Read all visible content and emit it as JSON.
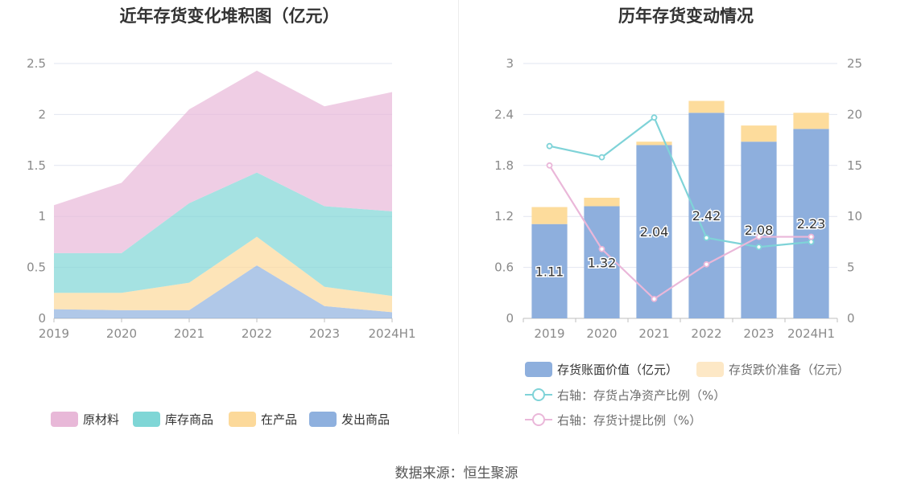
{
  "footer": "数据来源：恒生聚源",
  "colors": {
    "raw": "#e8b8d8",
    "stock": "#7fd6d6",
    "wip": "#fcd99a",
    "shipped": "#8eb0de",
    "bar_book": "#8eafdd",
    "bar_reserve": "#fddc9c",
    "line_ratio": "#7fd3d8",
    "line_reserve_rate": "#eab7d9",
    "grid": "#e2e6f0",
    "axis": "#bfbfbf"
  },
  "chart_data": [
    {
      "type": "area",
      "stacked": true,
      "title": "近年存货变化堆积图（亿元）",
      "categories": [
        "2019",
        "2020",
        "2021",
        "2022",
        "2023",
        "2024H1"
      ],
      "ylim": [
        0,
        2.5
      ],
      "yticks": [
        "0",
        "0.5",
        "1",
        "1.5",
        "2",
        "2.5"
      ],
      "legend_position": "bottom",
      "series": [
        {
          "name": "发出商品",
          "color_key": "shipped",
          "values": [
            0.09,
            0.08,
            0.08,
            0.52,
            0.12,
            0.06
          ]
        },
        {
          "name": "在产品",
          "color_key": "wip",
          "values": [
            0.16,
            0.17,
            0.27,
            0.28,
            0.19,
            0.16
          ]
        },
        {
          "name": "库存商品",
          "color_key": "stock",
          "values": [
            0.39,
            0.39,
            0.78,
            0.63,
            0.79,
            0.83
          ]
        },
        {
          "name": "原材料",
          "color_key": "raw",
          "values": [
            0.47,
            0.69,
            0.92,
            1.0,
            0.98,
            1.17
          ]
        }
      ],
      "legend_order": [
        "原材料",
        "库存商品",
        "在产品",
        "发出商品"
      ]
    },
    {
      "type": "bar",
      "stacked": true,
      "title": "历年存货变动情况",
      "categories": [
        "2019",
        "2020",
        "2021",
        "2022",
        "2023",
        "2024H1"
      ],
      "ylim": [
        0,
        3
      ],
      "yticks": [
        "0",
        "0.6",
        "1.2",
        "1.8",
        "2.4",
        "3"
      ],
      "y2lim": [
        0,
        25
      ],
      "y2ticks": [
        "0",
        "5",
        "10",
        "15",
        "20",
        "25"
      ],
      "legend_position": "bottom",
      "series": [
        {
          "name": "存货账面价值（亿元）",
          "kind": "bar",
          "axis": "left",
          "color_key": "bar_book",
          "values": [
            1.11,
            1.32,
            2.04,
            2.42,
            2.08,
            2.23
          ],
          "labels": [
            "1.11",
            "1.32",
            "2.04",
            "2.42",
            "2.08",
            "2.23"
          ]
        },
        {
          "name": "存货跌价准备（亿元）",
          "kind": "bar",
          "axis": "left",
          "color_key": "bar_reserve",
          "values": [
            0.2,
            0.1,
            0.04,
            0.14,
            0.19,
            0.19
          ]
        },
        {
          "name": "右轴：存货占净资产比例（%）",
          "kind": "line",
          "axis": "right",
          "color_key": "line_ratio",
          "values": [
            16.9,
            15.8,
            19.7,
            7.9,
            7.0,
            7.5
          ]
        },
        {
          "name": "右轴：存货计提比例（%）",
          "kind": "line",
          "axis": "right",
          "color_key": "line_reserve_rate",
          "values": [
            15.0,
            6.8,
            1.9,
            5.3,
            8.0,
            8.0
          ]
        }
      ]
    }
  ]
}
